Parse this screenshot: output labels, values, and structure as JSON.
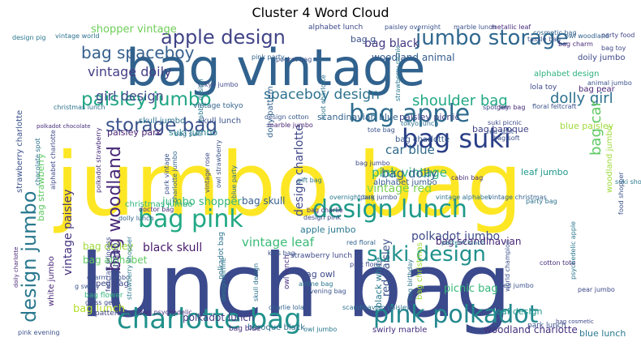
{
  "chart_data": {
    "type": "wordcloud",
    "title": "Cluster 4 Word Cloud",
    "words": [
      {
        "text": "jumbo bag",
        "color": "#fde725"
      },
      {
        "text": "lunch bag",
        "color": "#3b4a8c"
      },
      {
        "text": "bag vintage",
        "color": "#31628e"
      },
      {
        "text": "charlotte bag",
        "color": "#21918c"
      },
      {
        "text": "design lunch",
        "color": "#1f9a8a"
      },
      {
        "text": "pink polkadot",
        "color": "#23888e"
      },
      {
        "text": "bag pink",
        "color": "#22a884"
      },
      {
        "text": "bag suki",
        "color": "#2a3f86"
      },
      {
        "text": "bag apple",
        "color": "#2f6c8e"
      },
      {
        "text": "jumbo storage",
        "color": "#30688e"
      },
      {
        "text": "apple design",
        "color": "#414487"
      },
      {
        "text": "suki design",
        "color": "#21918c"
      },
      {
        "text": "paisley jumbo",
        "color": "#21a685"
      },
      {
        "text": "storage bag",
        "color": "#3b528b"
      },
      {
        "text": "design jumbo",
        "color": "#2a788e"
      },
      {
        "text": "bag spaceboy",
        "color": "#355f8d"
      },
      {
        "text": "bag woodland",
        "color": "#482878"
      },
      {
        "text": "spaceboy design",
        "color": "#2c728e"
      },
      {
        "text": "shoulder bag",
        "color": "#22a884"
      },
      {
        "text": "dolly girl",
        "color": "#2c718e"
      },
      {
        "text": "vintage doily",
        "color": "#433e85"
      },
      {
        "text": "girl design",
        "color": "#3e4989"
      },
      {
        "text": "bag black",
        "color": "#443983"
      },
      {
        "text": "bag car",
        "color": "#5ec962"
      },
      {
        "text": "pink vintage",
        "color": "#2fb47c"
      },
      {
        "text": "car blue",
        "color": "#2f6b8e"
      },
      {
        "text": "bag dolly",
        "color": "#32648e"
      },
      {
        "text": "vintage red",
        "color": "#7ad151"
      },
      {
        "text": "vintage leaf",
        "color": "#3aba76"
      },
      {
        "text": "black skull",
        "color": "#481a6c"
      },
      {
        "text": "polkadot jumbo",
        "color": "#3e4a89"
      },
      {
        "text": "vintage paisley",
        "color": "#46327e"
      },
      {
        "text": "design charlotte",
        "color": "#3f4788"
      },
      {
        "text": "jumbo shopper",
        "color": "#31b57b"
      },
      {
        "text": "bag skull",
        "color": "#365d8d"
      },
      {
        "text": "shopper vintage",
        "color": "#6ece58"
      },
      {
        "text": "bag g",
        "color": "#3b528b"
      },
      {
        "text": "woodland animal",
        "color": "#365c8d"
      },
      {
        "text": "bag alphabet",
        "color": "#5ec962"
      },
      {
        "text": "bag doiley",
        "color": "#9fda3a"
      },
      {
        "text": "bag lunch",
        "color": "#b5de2b"
      },
      {
        "text": "red paisley",
        "color": "#3b528b"
      },
      {
        "text": "bag scandinavian",
        "color": "#482475"
      },
      {
        "text": "picnic bag",
        "color": "#35b779"
      },
      {
        "text": "polkadot lunch",
        "color": "#443a83"
      },
      {
        "text": "woodland charlotte",
        "color": "#46307e"
      },
      {
        "text": "blue lunch",
        "color": "#2a788e"
      },
      {
        "text": "toy jumbo",
        "color": "#3e4989"
      },
      {
        "text": "leaf jumbo",
        "color": "#1f988b"
      },
      {
        "text": "blue paisley",
        "color": "#9fda3a"
      },
      {
        "text": "bag strawberry",
        "color": "#5ec962"
      },
      {
        "text": "paisley park",
        "color": "#482173"
      },
      {
        "text": "suki jumbo",
        "color": "#27808e"
      },
      {
        "text": "skull jumbo",
        "color": "#2c728e"
      },
      {
        "text": "skull lunch",
        "color": "#3b528b"
      },
      {
        "text": "scandinavian blue",
        "color": "#33638d"
      },
      {
        "text": "paisley picnic",
        "color": "#414487"
      },
      {
        "text": "bag baroque",
        "color": "#414487"
      },
      {
        "text": "bag charlotte",
        "color": "#38598c"
      },
      {
        "text": "alphabet jumbo",
        "color": "#365c8d"
      },
      {
        "text": "alphabet design",
        "color": "#2db27d"
      },
      {
        "text": "doily jumbo",
        "color": "#3e4989"
      },
      {
        "text": "bag pear",
        "color": "#482677"
      },
      {
        "text": "leaf design",
        "color": "#1f968b"
      },
      {
        "text": "bag owl",
        "color": "#3e4989"
      },
      {
        "text": "apple jumbo",
        "color": "#2a788e"
      },
      {
        "text": "woodland jumbo",
        "color": "#9fda3a"
      },
      {
        "text": "black white",
        "color": "#2a788e"
      },
      {
        "text": "bag christmas",
        "color": "#9fda3a"
      },
      {
        "text": "strawberry charlotte",
        "color": "#3b528b"
      },
      {
        "text": "vintage tokyo",
        "color": "#33638d"
      },
      {
        "text": "christmas jumbo",
        "color": "#2fb47c"
      },
      {
        "text": "design cotton",
        "color": "#38598c"
      },
      {
        "text": "lola toy",
        "color": "#3e4989"
      },
      {
        "text": "white jumbo",
        "color": "#482878"
      },
      {
        "text": "peg bag",
        "color": "#3e4989"
      },
      {
        "text": "park lunch",
        "color": "#3b528b"
      },
      {
        "text": "baroque black",
        "color": "#2f6c8e"
      },
      {
        "text": "bag blue",
        "color": "#472d7b"
      },
      {
        "text": "owl jumbo",
        "color": "#2a788e"
      },
      {
        "text": "swirly marble",
        "color": "#46307e"
      },
      {
        "text": "bag flower",
        "color": "#2fb47c"
      },
      {
        "text": "strawberry lunch",
        "color": "#3e4989"
      },
      {
        "text": "pattern jumbo",
        "color": "#414487"
      },
      {
        "text": "polkadot bag",
        "color": "#2c728e"
      },
      {
        "text": "owl lunch",
        "color": "#46307e"
      },
      {
        "text": "alphabet lunch",
        "color": "#3e4989"
      },
      {
        "text": "paisley overnight",
        "color": "#3b528b"
      },
      {
        "text": "marble lunch",
        "color": "#3b528b"
      },
      {
        "text": "metallic leaf",
        "color": "#472d7b"
      },
      {
        "text": "party food",
        "color": "#414487"
      },
      {
        "text": "design pig",
        "color": "#2a788e"
      },
      {
        "text": "vintage world",
        "color": "#2c728e"
      },
      {
        "text": "tassle bag",
        "color": "#3b528b"
      },
      {
        "text": "bag toy",
        "color": "#3e4989"
      },
      {
        "text": "bag charm",
        "color": "#472d7b"
      },
      {
        "text": "owl woodland",
        "color": "#33638d"
      },
      {
        "text": "cosmetic bag",
        "color": "#33638d"
      },
      {
        "text": "pocket bag",
        "color": "#3b528b"
      },
      {
        "text": "tokyo jumbo",
        "color": "#3e4989"
      },
      {
        "text": "rabbit design",
        "color": "#2a788e"
      },
      {
        "text": "dolly pattern",
        "color": "#33638d"
      },
      {
        "text": "spot charlotte",
        "color": "#2c728e"
      },
      {
        "text": "strawberry picnic",
        "color": "#2a788e"
      },
      {
        "text": "animal jumbo",
        "color": "#3b528b"
      },
      {
        "text": "christmas lunch",
        "color": "#2c728e"
      },
      {
        "text": "suki picnic",
        "color": "#3e4989"
      },
      {
        "text": "red spot",
        "color": "#3b528b"
      },
      {
        "text": "doctor bag",
        "color": "#472d7b"
      },
      {
        "text": "pink party",
        "color": "#33638d"
      },
      {
        "text": "spot toy",
        "color": "#3e4989"
      },
      {
        "text": "floral feltcraft",
        "color": "#3b528b"
      },
      {
        "text": "marble jumbo",
        "color": "#482475"
      },
      {
        "text": "tokyo lunch",
        "color": "#2c728e"
      },
      {
        "text": "bag soft",
        "color": "#3b528b"
      },
      {
        "text": "polkadot chocolate",
        "color": "#472d7b"
      },
      {
        "text": "tote bag",
        "color": "#3b528b"
      },
      {
        "text": "gift bag",
        "color": "#2c728e"
      },
      {
        "text": "cabin bag",
        "color": "#472d7b"
      },
      {
        "text": "bag jumbo",
        "color": "#3e4989"
      },
      {
        "text": "overnight bag",
        "color": "#2a788e"
      },
      {
        "text": "park jumbo",
        "color": "#3b528b"
      },
      {
        "text": "vintage alphabet",
        "color": "#2c728e"
      },
      {
        "text": "vintage christmas",
        "color": "#33638d"
      },
      {
        "text": "suki shoulder",
        "color": "#2a788e"
      },
      {
        "text": "food shopper",
        "color": "#3b528b"
      },
      {
        "text": "bag charlie",
        "color": "#472d7b"
      },
      {
        "text": "design pink",
        "color": "#3e4989"
      },
      {
        "text": "kids bag",
        "color": "#3b528b"
      },
      {
        "text": "party bag",
        "color": "#2c728e"
      },
      {
        "text": "red floral",
        "color": "#33638d"
      },
      {
        "text": "pink floral",
        "color": "#3e4989"
      },
      {
        "text": "pattern lunch",
        "color": "#2a788e"
      },
      {
        "text": "bag birthday",
        "color": "#2c728e"
      },
      {
        "text": "world champion",
        "color": "#3b528b"
      },
      {
        "text": "cotton tote",
        "color": "#472d7b"
      },
      {
        "text": "airline bag",
        "color": "#2a788e"
      },
      {
        "text": "pink evening",
        "color": "#3b528b"
      },
      {
        "text": "glass gem",
        "color": "#3e4989"
      },
      {
        "text": "pear jumbo",
        "color": "#3e4989"
      },
      {
        "text": "evening bag",
        "color": "#3b528b"
      },
      {
        "text": "charlie lola",
        "color": "#33638d"
      },
      {
        "text": "bag psychedelic",
        "color": "#472d7b"
      },
      {
        "text": "bag cosmetic",
        "color": "#3e4989"
      },
      {
        "text": "scandinavian paisley",
        "color": "#2c728e"
      },
      {
        "text": "charm jumbo",
        "color": "#3b528b"
      },
      {
        "text": "doily charlotte",
        "color": "#482475"
      },
      {
        "text": "strawberry shopper",
        "color": "#2a788e"
      },
      {
        "text": "feltcraft princess",
        "color": "#3e4989"
      },
      {
        "text": "park vintage",
        "color": "#3b528b"
      },
      {
        "text": "bag suki",
        "color": "#2c728e"
      },
      {
        "text": "dolly lunch",
        "color": "#33638d"
      },
      {
        "text": "gem bag",
        "color": "#472d7b"
      },
      {
        "text": "vintage rose",
        "color": "#3e4989"
      },
      {
        "text": "owl strawberry",
        "color": "#3b528b"
      },
      {
        "text": "blue party",
        "color": "#2c728e"
      },
      {
        "text": "charlotte jumbo",
        "color": "#33638d"
      },
      {
        "text": "alphabet charlotte",
        "color": "#3e4989"
      },
      {
        "text": "polkadot strawberry",
        "color": "#472d7b"
      },
      {
        "text": "g swirly",
        "color": "#3b528b"
      },
      {
        "text": "chocolate spot",
        "color": "#2c728e"
      },
      {
        "text": "psychedelic apple",
        "color": "#2a788e"
      },
      {
        "text": "red jumbo",
        "color": "#3b528b"
      },
      {
        "text": "design airline",
        "color": "#2a788e"
      },
      {
        "text": "skull design",
        "color": "#2c728e"
      }
    ]
  }
}
